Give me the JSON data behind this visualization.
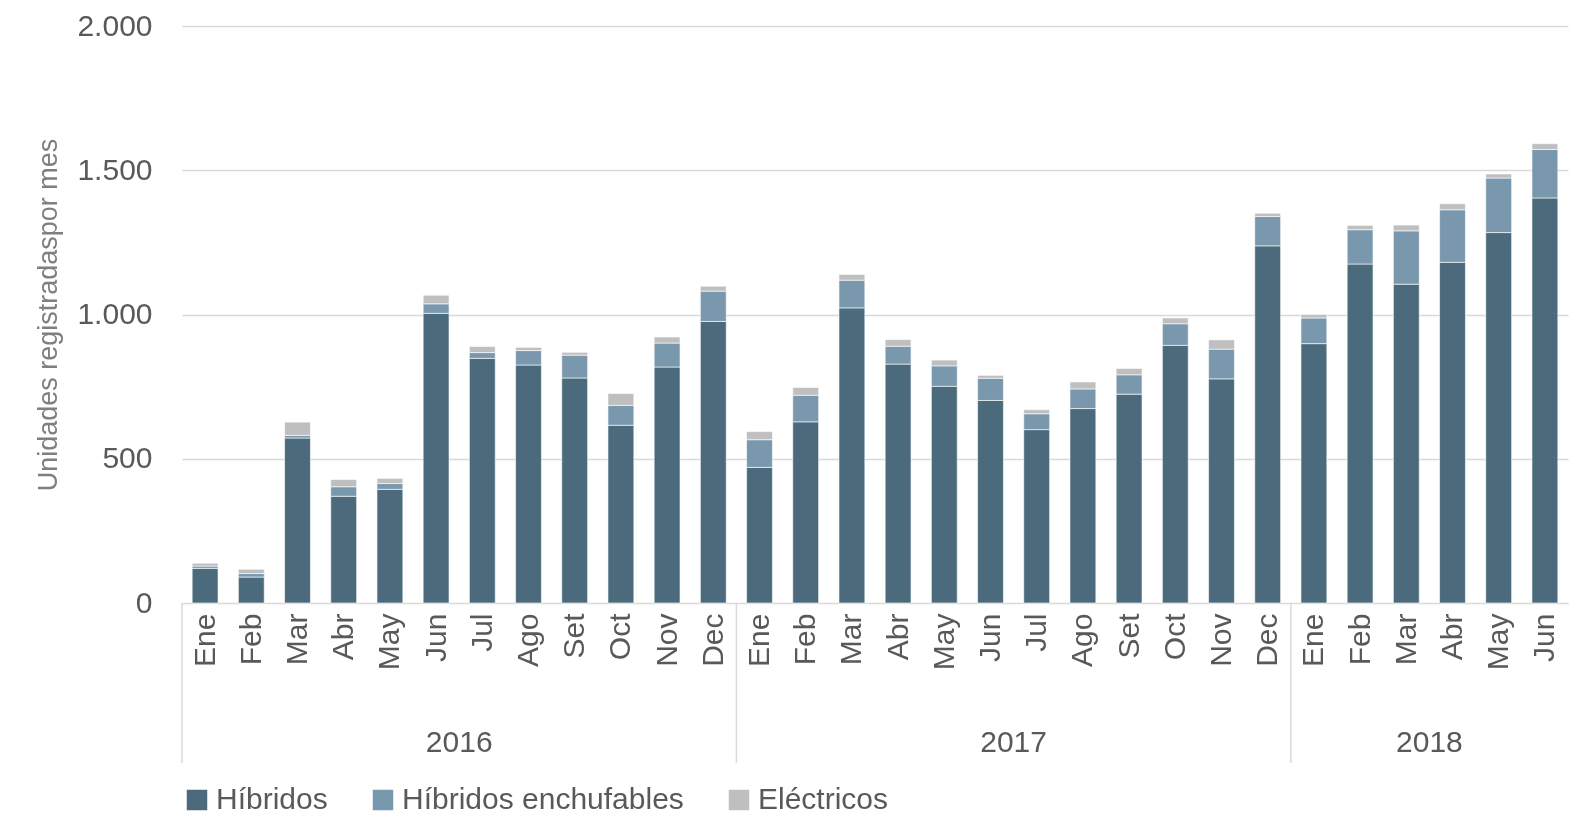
{
  "chart_data": {
    "type": "bar",
    "stacked": true,
    "ylabel": "Unidades registradaspor mes",
    "categories": [
      "Ene",
      "Feb",
      "Mar",
      "Abr",
      "May",
      "Jun",
      "Jul",
      "Ago",
      "Set",
      "Oct",
      "Nov",
      "Dec",
      "Ene",
      "Feb",
      "Mar",
      "Abr",
      "May",
      "Jun",
      "Jul",
      "Ago",
      "Set",
      "Oct",
      "Nov",
      "Dec",
      "Ene",
      "Feb",
      "Mar",
      "Abr",
      "May",
      "Jun"
    ],
    "series": [
      {
        "name": "Híbridos",
        "color": "#4b6b7c",
        "values": [
          120,
          90,
          572,
          370,
          394,
          1004,
          848,
          825,
          780,
          616,
          818,
          976,
          470,
          628,
          1023,
          828,
          751,
          702,
          601,
          674,
          724,
          893,
          777,
          1238,
          899,
          1175,
          1105,
          1181,
          1284,
          1404
        ]
      },
      {
        "name": "Híbridos enchufables",
        "color": "#7a98ad",
        "values": [
          8,
          12,
          9,
          33,
          20,
          33,
          20,
          50,
          79,
          69,
          83,
          105,
          96,
          92,
          96,
          62,
          71,
          77,
          55,
          68,
          67,
          75,
          103,
          102,
          89,
          119,
          185,
          182,
          189,
          168
        ]
      },
      {
        "name": "Eléctricos",
        "color": "#bfbfbf",
        "values": [
          10,
          15,
          46,
          25,
          18,
          30,
          21,
          11,
          10,
          41,
          21,
          17,
          28,
          27,
          20,
          23,
          20,
          10,
          14,
          24,
          22,
          20,
          32,
          11,
          12,
          15,
          20,
          21,
          14,
          20
        ]
      }
    ],
    "ylim": [
      0,
      2000
    ],
    "yticks": [
      {
        "value": 0,
        "label": "0"
      },
      {
        "value": 500,
        "label": "500"
      },
      {
        "value": 1000,
        "label": "1.000"
      },
      {
        "value": 1500,
        "label": "1.500"
      },
      {
        "value": 2000,
        "label": "2.000"
      }
    ],
    "grid": "y",
    "legend": "bottom",
    "annotations": [
      "2016",
      "2017",
      "2018"
    ]
  }
}
